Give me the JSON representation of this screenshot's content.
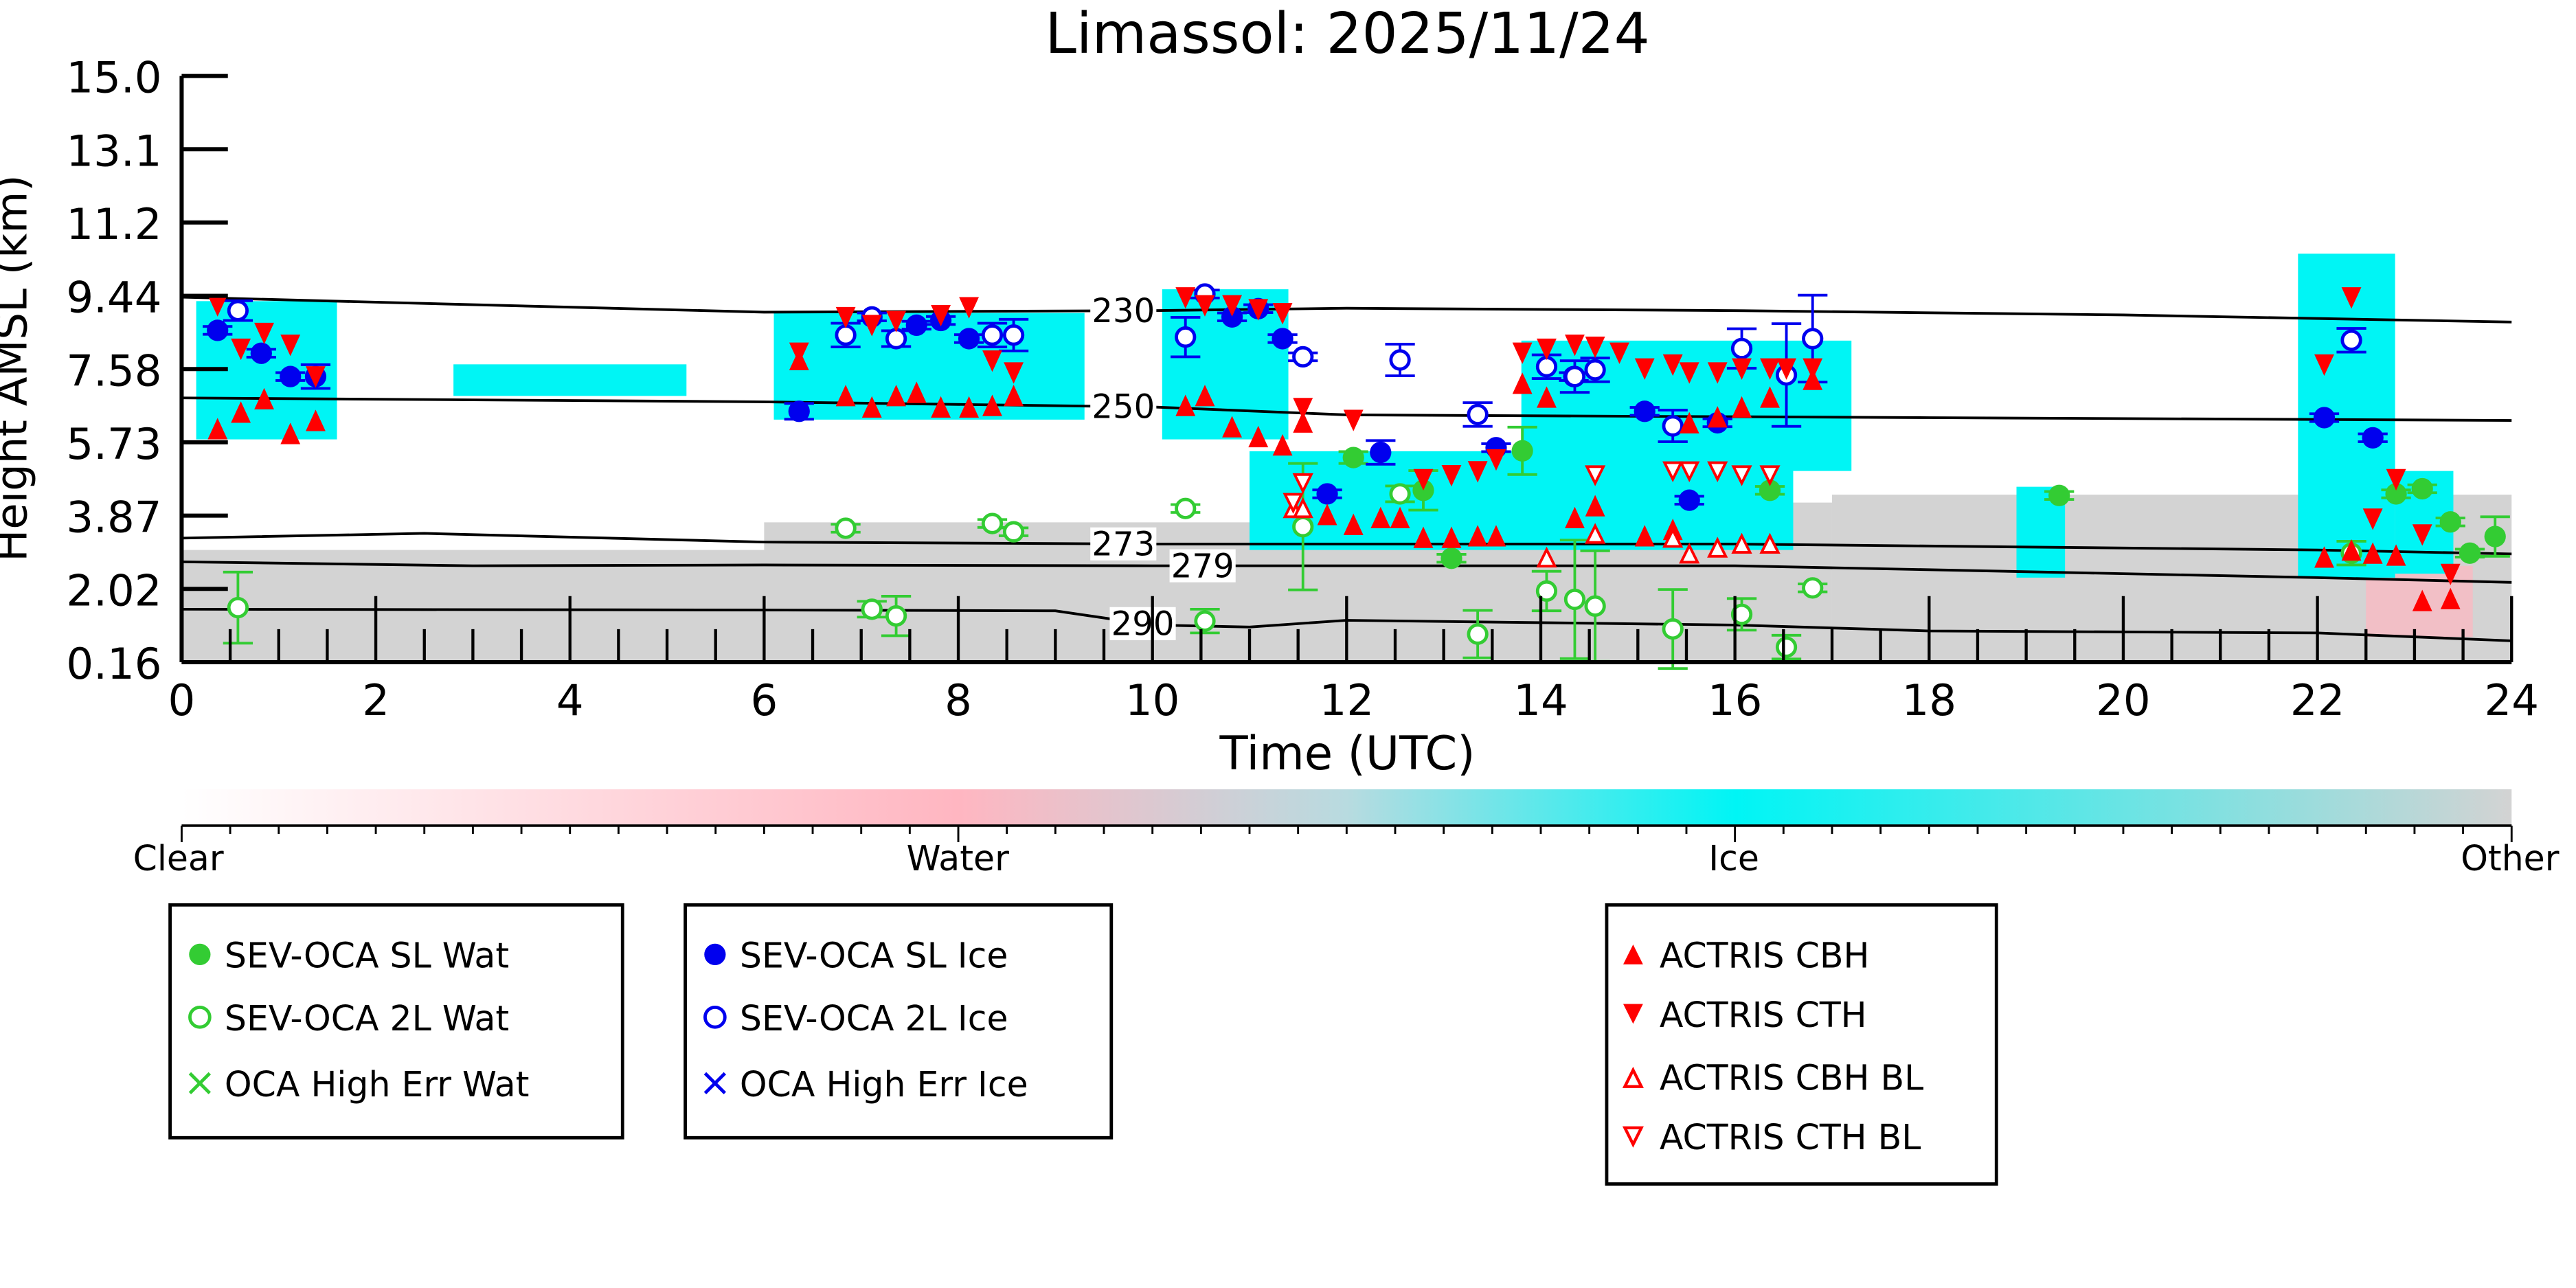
{
  "chart_data": {
    "type": "scatter",
    "title": "Limassol: 2025/11/24",
    "xlabel": "Time (UTC)",
    "ylabel": "Height AMSL (km)",
    "xlim": [
      0,
      24
    ],
    "ylim": [
      0.16,
      15.0
    ],
    "xticks": [
      "0",
      "2",
      "4",
      "6",
      "8",
      "10",
      "12",
      "14",
      "16",
      "18",
      "20",
      "22",
      "24"
    ],
    "yticks": [
      "0.16",
      "2.02",
      "3.87",
      "5.73",
      "7.58",
      "9.44",
      "11.2",
      "13.1",
      "15.0"
    ],
    "colors": {
      "water": "#33cc33",
      "ice": "#0000ee",
      "actris": "#ff0000",
      "clear": "#ffffff",
      "water_mask": "#ffb6c1",
      "ice_mask": "#00f5f5",
      "other_mask": "#d3d3d3"
    },
    "colorbar": {
      "labels": [
        "Clear",
        "Water",
        "Ice",
        "Other"
      ]
    },
    "mask_regions": [
      {
        "class": "Other",
        "t": [
          0,
          9.3
        ],
        "h": [
          0.16,
          3.0
        ]
      },
      {
        "class": "Other",
        "t": [
          6.0,
          11.0
        ],
        "h": [
          0.16,
          3.7
        ]
      },
      {
        "class": "Other",
        "t": [
          11.0,
          17.0
        ],
        "h": [
          0.16,
          4.2
        ]
      },
      {
        "class": "Other",
        "t": [
          17.0,
          24
        ],
        "h": [
          0.16,
          4.4
        ]
      },
      {
        "class": "Water",
        "t": [
          22.5,
          23.6
        ],
        "h": [
          0.8,
          2.6
        ]
      },
      {
        "class": "Ice",
        "t": [
          0.15,
          1.6
        ],
        "h": [
          5.8,
          9.3
        ]
      },
      {
        "class": "Ice",
        "t": [
          2.8,
          5.2
        ],
        "h": [
          6.9,
          7.7
        ]
      },
      {
        "class": "Ice",
        "t": [
          6.1,
          9.3
        ],
        "h": [
          6.3,
          9.0
        ]
      },
      {
        "class": "Ice",
        "t": [
          10.1,
          11.4
        ],
        "h": [
          5.8,
          9.6
        ]
      },
      {
        "class": "Ice",
        "t": [
          11.0,
          16.6
        ],
        "h": [
          3.0,
          5.5
        ]
      },
      {
        "class": "Ice",
        "t": [
          13.8,
          17.2
        ],
        "h": [
          5.0,
          8.3
        ]
      },
      {
        "class": "Ice",
        "t": [
          18.9,
          19.4
        ],
        "h": [
          2.3,
          4.6
        ]
      },
      {
        "class": "Ice",
        "t": [
          21.8,
          22.8
        ],
        "h": [
          2.3,
          10.5
        ]
      },
      {
        "class": "Ice",
        "t": [
          22.8,
          23.4
        ],
        "h": [
          2.4,
          5.0
        ]
      }
    ],
    "contours": [
      {
        "label": "230",
        "label_t": 9.7,
        "points": [
          [
            0,
            9.4
          ],
          [
            6,
            9.02
          ],
          [
            10,
            9.06
          ],
          [
            12,
            9.12
          ],
          [
            16,
            9.06
          ],
          [
            20,
            8.95
          ],
          [
            24,
            8.77
          ]
        ]
      },
      {
        "label": "250",
        "label_t": 9.7,
        "points": [
          [
            0,
            6.85
          ],
          [
            6,
            6.75
          ],
          [
            10,
            6.62
          ],
          [
            12,
            6.42
          ],
          [
            18,
            6.35
          ],
          [
            24,
            6.28
          ]
        ]
      },
      {
        "label": "273",
        "label_t": 9.7,
        "points": [
          [
            0,
            3.3
          ],
          [
            2.5,
            3.42
          ],
          [
            6,
            3.2
          ],
          [
            10,
            3.15
          ],
          [
            16,
            3.15
          ],
          [
            22,
            3.0
          ],
          [
            24,
            2.9
          ]
        ]
      },
      {
        "label": "279",
        "label_t": 9.7,
        "points": [
          [
            0,
            2.7
          ],
          [
            3,
            2.6
          ],
          [
            6,
            2.62
          ],
          [
            10,
            2.6
          ],
          [
            16,
            2.6
          ],
          [
            22,
            2.3
          ],
          [
            24,
            2.18
          ]
        ]
      },
      {
        "label": "290",
        "label_t": 9.9,
        "points": [
          [
            0,
            1.5
          ],
          [
            6,
            1.48
          ],
          [
            9,
            1.46
          ],
          [
            10,
            1.1
          ],
          [
            11,
            1.05
          ],
          [
            12,
            1.22
          ],
          [
            16,
            1.1
          ],
          [
            18,
            0.95
          ],
          [
            22,
            0.9
          ],
          [
            24,
            0.7
          ]
        ]
      }
    ],
    "series": [
      {
        "name": "SEV-OCA SL Wat",
        "marker": "filled-circle",
        "color": "#33cc33",
        "points": [
          [
            12.07,
            5.34,
            0.15
          ],
          [
            12.79,
            4.51,
            0.5
          ],
          [
            13.08,
            2.79,
            0.1
          ],
          [
            13.81,
            5.51,
            0.6
          ],
          [
            16.36,
            4.51,
            0.1
          ],
          [
            19.34,
            4.38,
            0.1
          ],
          [
            22.81,
            4.42,
            0.1
          ],
          [
            23.08,
            4.55,
            0.1
          ],
          [
            23.37,
            3.71,
            0.1
          ],
          [
            23.57,
            2.92,
            0.1
          ],
          [
            23.83,
            3.34,
            0.5
          ]
        ]
      },
      {
        "name": "SEV-OCA 2L Wat",
        "marker": "open-circle",
        "color": "#33cc33",
        "points": [
          [
            0.58,
            1.54,
            0.9
          ],
          [
            6.84,
            3.55,
            0.1
          ],
          [
            7.11,
            1.5,
            0.2
          ],
          [
            7.36,
            1.33,
            0.5
          ],
          [
            8.35,
            3.67,
            0.1
          ],
          [
            8.57,
            3.46,
            0.1
          ],
          [
            10.34,
            4.05,
            0.1
          ],
          [
            10.54,
            1.2,
            0.3
          ],
          [
            11.55,
            3.59,
            1.6
          ],
          [
            12.55,
            4.42,
            0.2
          ],
          [
            13.35,
            0.87,
            0.6
          ],
          [
            14.06,
            1.96,
            0.5
          ],
          [
            14.35,
            1.75,
            1.5
          ],
          [
            14.56,
            1.58,
            1.4
          ],
          [
            15.36,
            1.0,
            1.0
          ],
          [
            16.07,
            1.37,
            0.4
          ],
          [
            16.53,
            0.54,
            0.3
          ],
          [
            16.8,
            2.04,
            0.1
          ],
          [
            22.35,
            2.92,
            0.3
          ]
        ]
      },
      {
        "name": "OCA High Err Wat",
        "marker": "x",
        "color": "#33cc33",
        "points": []
      },
      {
        "name": "SEV-OCA SL Ice",
        "marker": "filled-circle",
        "color": "#0000ee",
        "points": [
          [
            0.37,
            8.56,
            0.1
          ],
          [
            0.82,
            7.98,
            0.1
          ],
          [
            1.12,
            7.39,
            0.1
          ],
          [
            1.38,
            7.39,
            0.3
          ],
          [
            6.36,
            6.51,
            0.2
          ],
          [
            7.57,
            8.69,
            0.1
          ],
          [
            7.82,
            8.81,
            0.1
          ],
          [
            8.11,
            8.35,
            0.1
          ],
          [
            10.82,
            8.9,
            0.1
          ],
          [
            11.09,
            9.11,
            0.1
          ],
          [
            11.34,
            8.35,
            0.1
          ],
          [
            11.8,
            4.42,
            0.1
          ],
          [
            12.35,
            5.47,
            0.3
          ],
          [
            13.54,
            5.59,
            0.1
          ],
          [
            14.34,
            7.39,
            0.1
          ],
          [
            15.07,
            6.51,
            0.1
          ],
          [
            15.53,
            4.26,
            0.1
          ],
          [
            15.82,
            6.22,
            0.1
          ],
          [
            22.07,
            6.35,
            0.1
          ],
          [
            22.57,
            5.84,
            0.1
          ]
        ]
      },
      {
        "name": "SEV-OCA 2L Ice",
        "marker": "open-circle",
        "color": "#0000ee",
        "points": [
          [
            0.58,
            9.06,
            0.25
          ],
          [
            6.84,
            8.44,
            0.3
          ],
          [
            7.11,
            8.9,
            0.1
          ],
          [
            7.36,
            8.35,
            0.2
          ],
          [
            8.35,
            8.44,
            0.3
          ],
          [
            8.57,
            8.44,
            0.4
          ],
          [
            10.34,
            8.39,
            0.5
          ],
          [
            10.54,
            9.48,
            0.1
          ],
          [
            11.55,
            7.89,
            0.1
          ],
          [
            12.55,
            7.81,
            0.4
          ],
          [
            13.35,
            6.43,
            0.3
          ],
          [
            14.06,
            7.64,
            0.3
          ],
          [
            14.35,
            7.39,
            0.4
          ],
          [
            14.56,
            7.56,
            0.3
          ],
          [
            15.36,
            6.14,
            0.4
          ],
          [
            16.07,
            8.1,
            0.5
          ],
          [
            16.53,
            7.43,
            1.3
          ],
          [
            16.8,
            8.35,
            1.1
          ],
          [
            22.35,
            8.31,
            0.3
          ]
        ]
      },
      {
        "name": "OCA High Err Ice",
        "marker": "x",
        "color": "#0000ee",
        "points": []
      },
      {
        "name": "ACTRIS CBH",
        "marker": "filled-triangle-up",
        "color": "#ff0000",
        "points": [
          [
            0.37,
            6.05
          ],
          [
            0.61,
            6.47
          ],
          [
            0.85,
            6.81
          ],
          [
            1.12,
            5.93
          ],
          [
            1.38,
            6.26
          ],
          [
            6.36,
            7.8
          ],
          [
            6.84,
            6.89
          ],
          [
            7.11,
            6.6
          ],
          [
            7.36,
            6.89
          ],
          [
            7.57,
            6.97
          ],
          [
            7.82,
            6.6
          ],
          [
            8.11,
            6.6
          ],
          [
            8.35,
            6.64
          ],
          [
            8.57,
            6.89
          ],
          [
            10.34,
            6.64
          ],
          [
            10.54,
            6.89
          ],
          [
            10.82,
            6.1
          ],
          [
            11.09,
            5.85
          ],
          [
            11.34,
            5.64
          ],
          [
            11.55,
            6.22
          ],
          [
            11.8,
            3.88
          ],
          [
            12.07,
            3.63
          ],
          [
            12.35,
            3.8
          ],
          [
            12.55,
            3.8
          ],
          [
            12.79,
            3.3
          ],
          [
            13.08,
            3.3
          ],
          [
            13.35,
            3.34
          ],
          [
            13.54,
            3.34
          ],
          [
            13.81,
            7.2
          ],
          [
            14.06,
            6.85
          ],
          [
            14.35,
            3.8
          ],
          [
            14.56,
            4.1
          ],
          [
            15.07,
            3.34
          ],
          [
            15.36,
            3.5
          ],
          [
            15.53,
            6.2
          ],
          [
            15.82,
            6.35
          ],
          [
            16.07,
            6.6
          ],
          [
            16.36,
            6.85
          ],
          [
            16.8,
            7.3
          ],
          [
            22.07,
            2.8
          ],
          [
            22.35,
            2.98
          ],
          [
            22.57,
            2.9
          ],
          [
            22.81,
            2.85
          ],
          [
            23.08,
            1.7
          ],
          [
            23.37,
            1.75
          ]
        ]
      },
      {
        "name": "ACTRIS CTH",
        "marker": "filled-triangle-down",
        "color": "#ff0000",
        "points": [
          [
            0.37,
            9.2
          ],
          [
            0.61,
            8.1
          ],
          [
            0.85,
            8.5
          ],
          [
            1.12,
            8.2
          ],
          [
            1.38,
            7.4
          ],
          [
            6.36,
            8.0
          ],
          [
            6.84,
            8.9
          ],
          [
            7.11,
            8.7
          ],
          [
            7.36,
            8.8
          ],
          [
            7.82,
            8.95
          ],
          [
            8.11,
            9.15
          ],
          [
            8.35,
            7.8
          ],
          [
            8.57,
            7.5
          ],
          [
            10.34,
            9.4
          ],
          [
            10.54,
            9.2
          ],
          [
            10.82,
            9.2
          ],
          [
            11.09,
            9.1
          ],
          [
            11.34,
            9.0
          ],
          [
            11.55,
            6.6
          ],
          [
            12.07,
            6.3
          ],
          [
            12.79,
            4.8
          ],
          [
            13.08,
            4.9
          ],
          [
            13.35,
            5.0
          ],
          [
            13.54,
            5.3
          ],
          [
            13.81,
            8.0
          ],
          [
            14.06,
            8.1
          ],
          [
            14.35,
            8.2
          ],
          [
            14.56,
            8.15
          ],
          [
            14.81,
            8.0
          ],
          [
            15.07,
            7.6
          ],
          [
            15.36,
            7.7
          ],
          [
            15.53,
            7.5
          ],
          [
            15.82,
            7.5
          ],
          [
            16.07,
            7.6
          ],
          [
            16.36,
            7.6
          ],
          [
            16.53,
            7.6
          ],
          [
            16.8,
            7.6
          ],
          [
            22.07,
            7.7
          ],
          [
            22.35,
            9.4
          ],
          [
            22.57,
            3.8
          ],
          [
            22.81,
            4.8
          ],
          [
            23.08,
            3.4
          ],
          [
            23.37,
            2.4
          ]
        ]
      },
      {
        "name": "ACTRIS CBH BL",
        "marker": "open-triangle-up",
        "color": "#ff0000",
        "points": [
          [
            11.45,
            4.05
          ],
          [
            11.55,
            4.05
          ],
          [
            14.06,
            2.8
          ],
          [
            14.56,
            3.4
          ],
          [
            15.36,
            3.3
          ],
          [
            15.53,
            2.9
          ],
          [
            15.82,
            3.05
          ],
          [
            16.07,
            3.15
          ],
          [
            16.36,
            3.15
          ]
        ]
      },
      {
        "name": "ACTRIS CTH BL",
        "marker": "open-triangle-down",
        "color": "#ff0000",
        "points": [
          [
            11.45,
            4.2
          ],
          [
            11.55,
            4.7
          ],
          [
            14.56,
            4.9
          ],
          [
            15.36,
            5.0
          ],
          [
            15.53,
            5.0
          ],
          [
            15.82,
            5.0
          ],
          [
            16.07,
            4.9
          ],
          [
            16.36,
            4.9
          ]
        ]
      }
    ]
  }
}
